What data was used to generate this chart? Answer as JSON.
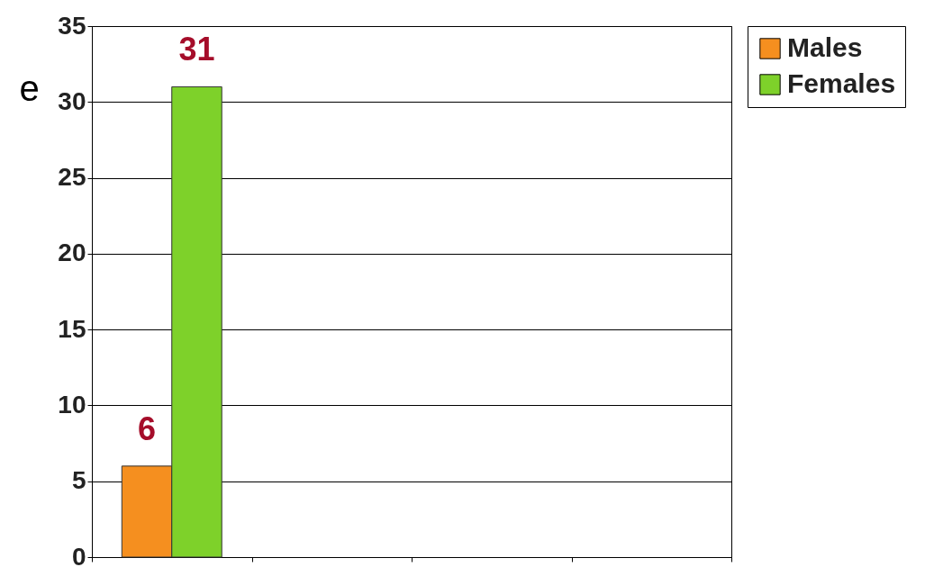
{
  "chart_data": {
    "type": "bar",
    "ylabel": "e",
    "categories": [
      null,
      null,
      null,
      null
    ],
    "series": [
      {
        "name": "Males",
        "color": "#f58f1f",
        "values": [
          6,
          null,
          null,
          null
        ]
      },
      {
        "name": "Females",
        "color": "#7ed12a",
        "values": [
          31,
          null,
          null,
          null
        ]
      }
    ],
    "ylim": [
      0,
      35
    ],
    "yticks": [
      0,
      5,
      10,
      15,
      20,
      25,
      30,
      35
    ],
    "grid": "y",
    "legend": "right",
    "data_labels": true
  }
}
